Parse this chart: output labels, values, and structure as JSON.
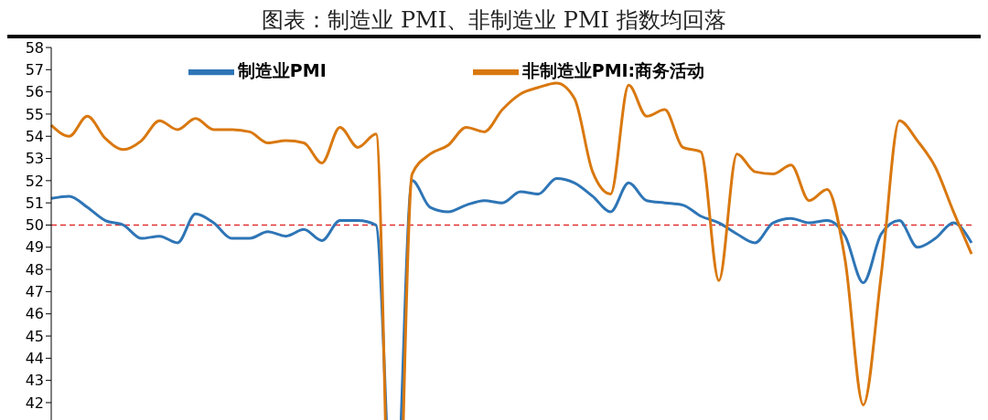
{
  "chart_data": {
    "type": "line",
    "title": "图表：制造业 PMI、非制造业 PMI 指数均回落",
    "categories": [
      null,
      null,
      null,
      null,
      null,
      null,
      null,
      null,
      null,
      null,
      null,
      null,
      null,
      null,
      null,
      null,
      null,
      null,
      null,
      null,
      null,
      null,
      null,
      null,
      null,
      null,
      null,
      null,
      null,
      null,
      null,
      null,
      null,
      null,
      null,
      null,
      null,
      null,
      null,
      null,
      null,
      null,
      null,
      null,
      null,
      null,
      null,
      null,
      null,
      null,
      null,
      null
    ],
    "series": [
      {
        "name": "制造业PMI",
        "color": "#2e75b6",
        "values": [
          51.2,
          51.3,
          50.8,
          50.2,
          50.0,
          49.4,
          49.5,
          49.2,
          50.5,
          50.1,
          49.4,
          49.4,
          49.7,
          49.5,
          49.8,
          49.3,
          50.2,
          50.2,
          50.0,
          35.7,
          52.0,
          50.8,
          50.6,
          50.9,
          51.1,
          51.0,
          51.5,
          51.4,
          52.1,
          51.9,
          51.3,
          50.6,
          51.9,
          51.1,
          51.0,
          50.9,
          50.4,
          50.1,
          49.6,
          49.2,
          50.1,
          50.3,
          50.1,
          50.2,
          49.5,
          47.4,
          49.6,
          50.2,
          49.0,
          49.4,
          50.1,
          49.2
        ]
      },
      {
        "name": "非制造业PMI:商务活动",
        "color": "#d9780f",
        "values": [
          54.5,
          54.0,
          54.9,
          53.9,
          53.4,
          53.8,
          54.7,
          54.3,
          54.8,
          54.3,
          54.3,
          54.2,
          53.7,
          53.8,
          53.7,
          52.8,
          54.4,
          53.5,
          54.1,
          29.6,
          52.3,
          53.2,
          53.6,
          54.4,
          54.2,
          55.2,
          55.9,
          56.2,
          56.4,
          55.7,
          52.4,
          51.4,
          56.3,
          54.9,
          55.2,
          53.5,
          53.3,
          47.5,
          53.2,
          52.4,
          52.3,
          52.7,
          51.1,
          51.6,
          48.4,
          41.9,
          47.8,
          54.7,
          53.8,
          52.6,
          50.6,
          48.7
        ]
      }
    ],
    "ylim": [
      29,
      58
    ],
    "yticks": [
      42,
      43,
      44,
      45,
      46,
      47,
      48,
      49,
      50,
      51,
      52,
      53,
      54,
      55,
      56,
      57,
      58
    ],
    "ref_lines": [
      {
        "axis": "y",
        "value": 50,
        "color": "#e03030",
        "line_style": "dashed"
      }
    ],
    "tick_labels": "y",
    "grid": false,
    "legend": "top",
    "marker": "none",
    "line_style": "solid"
  }
}
